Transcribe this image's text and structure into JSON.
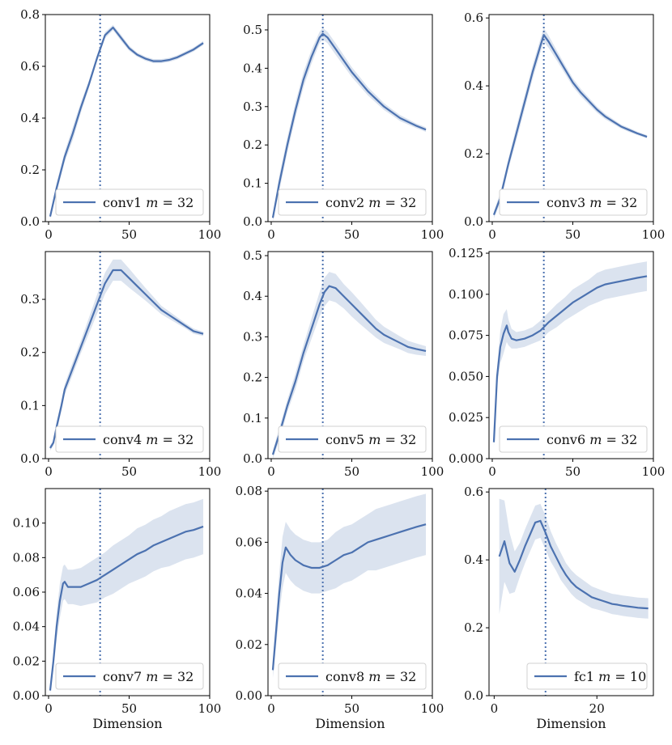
{
  "chart_data": [
    {
      "type": "line",
      "title": "",
      "legend": "conv1 m = 32",
      "legend_name": "conv1",
      "legend_var": "m",
      "legend_val": "32",
      "vline_x": 32,
      "xlim": [
        -2,
        100
      ],
      "ylim": [
        0,
        0.8
      ],
      "xticks": [
        0,
        50,
        100
      ],
      "yticks": [
        "0.0",
        "0.2",
        "0.4",
        "0.6",
        "0.8"
      ],
      "xlabel": "",
      "x": [
        1,
        5,
        10,
        15,
        20,
        25,
        30,
        35,
        40,
        45,
        50,
        55,
        60,
        65,
        70,
        75,
        80,
        85,
        90,
        96
      ],
      "y": [
        0.02,
        0.13,
        0.25,
        0.34,
        0.44,
        0.53,
        0.63,
        0.72,
        0.75,
        0.71,
        0.67,
        0.645,
        0.63,
        0.62,
        0.62,
        0.625,
        0.635,
        0.65,
        0.665,
        0.69
      ],
      "band": [
        0.01,
        0.02,
        0.02,
        0.025,
        0.02,
        0.015,
        0.012,
        0.012,
        0.01,
        0.012,
        0.01,
        0.008,
        0.008,
        0.008,
        0.008,
        0.008,
        0.008,
        0.008,
        0.008,
        0.008
      ]
    },
    {
      "type": "line",
      "title": "",
      "legend": "conv2 m = 32",
      "legend_name": "conv2",
      "legend_var": "m",
      "legend_val": "32",
      "vline_x": 32,
      "xlim": [
        -2,
        100
      ],
      "ylim": [
        0,
        0.54
      ],
      "xticks": [
        0,
        50,
        100
      ],
      "yticks": [
        "0.0",
        "0.1",
        "0.2",
        "0.3",
        "0.4",
        "0.5"
      ],
      "xlabel": "",
      "x": [
        1,
        5,
        10,
        15,
        20,
        25,
        30,
        32,
        35,
        40,
        45,
        50,
        55,
        60,
        65,
        70,
        75,
        80,
        85,
        90,
        96
      ],
      "y": [
        0.01,
        0.1,
        0.2,
        0.29,
        0.37,
        0.43,
        0.48,
        0.49,
        0.48,
        0.45,
        0.42,
        0.39,
        0.365,
        0.34,
        0.32,
        0.3,
        0.285,
        0.27,
        0.26,
        0.25,
        0.24
      ],
      "band": [
        0.01,
        0.02,
        0.02,
        0.02,
        0.02,
        0.018,
        0.015,
        0.015,
        0.015,
        0.015,
        0.014,
        0.013,
        0.012,
        0.011,
        0.01,
        0.009,
        0.008,
        0.008,
        0.007,
        0.006,
        0.006
      ]
    },
    {
      "type": "line",
      "title": "",
      "legend": "conv3 m = 32",
      "legend_name": "conv3",
      "legend_var": "m",
      "legend_val": "32",
      "vline_x": 32,
      "xlim": [
        -2,
        100
      ],
      "ylim": [
        0,
        0.61
      ],
      "xticks": [
        0,
        50,
        100
      ],
      "yticks": [
        "0.0",
        "0.2",
        "0.4",
        "0.6"
      ],
      "xlabel": "",
      "x": [
        1,
        5,
        10,
        15,
        20,
        25,
        30,
        32,
        35,
        40,
        45,
        50,
        55,
        60,
        65,
        70,
        75,
        80,
        85,
        90,
        96
      ],
      "y": [
        0.02,
        0.07,
        0.17,
        0.26,
        0.35,
        0.44,
        0.52,
        0.55,
        0.53,
        0.49,
        0.45,
        0.41,
        0.38,
        0.355,
        0.33,
        0.31,
        0.295,
        0.28,
        0.27,
        0.26,
        0.25
      ],
      "band": [
        0.01,
        0.015,
        0.015,
        0.02,
        0.02,
        0.02,
        0.02,
        0.02,
        0.018,
        0.015,
        0.013,
        0.012,
        0.011,
        0.01,
        0.009,
        0.008,
        0.007,
        0.006,
        0.006,
        0.005,
        0.005
      ]
    },
    {
      "type": "line",
      "title": "",
      "legend": "conv4 m = 32",
      "legend_name": "conv4",
      "legend_var": "m",
      "legend_val": "32",
      "vline_x": 32,
      "xlim": [
        -2,
        100
      ],
      "ylim": [
        0,
        0.39
      ],
      "xticks": [
        0,
        50,
        100
      ],
      "yticks": [
        "0.0",
        "0.1",
        "0.2",
        "0.3"
      ],
      "xlabel": "",
      "x": [
        1,
        3,
        5,
        8,
        10,
        15,
        20,
        25,
        30,
        35,
        40,
        45,
        50,
        55,
        60,
        65,
        70,
        75,
        80,
        85,
        90,
        96
      ],
      "y": [
        0.02,
        0.03,
        0.06,
        0.1,
        0.13,
        0.17,
        0.21,
        0.25,
        0.29,
        0.33,
        0.355,
        0.355,
        0.34,
        0.325,
        0.31,
        0.295,
        0.28,
        0.27,
        0.26,
        0.25,
        0.24,
        0.235
      ],
      "band": [
        0.005,
        0.005,
        0.01,
        0.01,
        0.01,
        0.012,
        0.012,
        0.015,
        0.018,
        0.02,
        0.02,
        0.02,
        0.018,
        0.015,
        0.012,
        0.01,
        0.008,
        0.007,
        0.006,
        0.005,
        0.005,
        0.004
      ]
    },
    {
      "type": "line",
      "title": "",
      "legend": "conv5 m = 32",
      "legend_name": "conv5",
      "legend_var": "m",
      "legend_val": "32",
      "vline_x": 32,
      "xlim": [
        -2,
        100
      ],
      "ylim": [
        0,
        0.51
      ],
      "xticks": [
        0,
        50,
        100
      ],
      "yticks": [
        "0.0",
        "0.1",
        "0.2",
        "0.3",
        "0.4",
        "0.5"
      ],
      "xlabel": "",
      "x": [
        1,
        5,
        10,
        15,
        20,
        25,
        30,
        33,
        36,
        40,
        45,
        50,
        55,
        60,
        65,
        70,
        75,
        80,
        85,
        90,
        96
      ],
      "y": [
        0.01,
        0.06,
        0.13,
        0.19,
        0.26,
        0.32,
        0.38,
        0.41,
        0.425,
        0.42,
        0.4,
        0.38,
        0.36,
        0.34,
        0.32,
        0.305,
        0.295,
        0.285,
        0.275,
        0.27,
        0.265
      ],
      "band": [
        0.01,
        0.015,
        0.015,
        0.02,
        0.02,
        0.025,
        0.03,
        0.035,
        0.035,
        0.035,
        0.03,
        0.03,
        0.028,
        0.025,
        0.022,
        0.02,
        0.018,
        0.016,
        0.015,
        0.014,
        0.012
      ]
    },
    {
      "type": "line",
      "title": "",
      "legend": "conv6 m = 32",
      "legend_name": "conv6",
      "legend_var": "m",
      "legend_val": "32",
      "vline_x": 32,
      "xlim": [
        -2,
        100
      ],
      "ylim": [
        0,
        0.126
      ],
      "xticks": [
        0,
        50,
        100
      ],
      "yticks": [
        "0.000",
        "0.025",
        "0.050",
        "0.075",
        "0.100",
        "0.125"
      ],
      "xlabel": "",
      "x": [
        1,
        3,
        5,
        7,
        9,
        10,
        12,
        15,
        20,
        25,
        30,
        35,
        40,
        45,
        50,
        55,
        60,
        65,
        70,
        75,
        80,
        85,
        90,
        96
      ],
      "y": [
        0.01,
        0.05,
        0.068,
        0.076,
        0.081,
        0.077,
        0.073,
        0.072,
        0.073,
        0.075,
        0.078,
        0.083,
        0.087,
        0.091,
        0.095,
        0.098,
        0.101,
        0.104,
        0.106,
        0.107,
        0.108,
        0.109,
        0.11,
        0.111
      ],
      "band": [
        0.003,
        0.006,
        0.01,
        0.012,
        0.01,
        0.008,
        0.006,
        0.005,
        0.005,
        0.005,
        0.006,
        0.006,
        0.007,
        0.007,
        0.008,
        0.008,
        0.008,
        0.009,
        0.009,
        0.009,
        0.009,
        0.009,
        0.009,
        0.009
      ]
    },
    {
      "type": "line",
      "title": "",
      "legend": "conv7 m = 32",
      "legend_name": "conv7",
      "legend_var": "m",
      "legend_val": "32",
      "vline_x": 32,
      "xlim": [
        -2,
        100
      ],
      "ylim": [
        0,
        0.12
      ],
      "xticks": [
        0,
        50,
        100
      ],
      "yticks": [
        "0.00",
        "0.02",
        "0.04",
        "0.06",
        "0.08",
        "0.10"
      ],
      "xlabel": "Dimension",
      "x": [
        1,
        3,
        5,
        7,
        9,
        10,
        12,
        15,
        20,
        25,
        30,
        35,
        40,
        45,
        50,
        55,
        60,
        65,
        70,
        75,
        80,
        85,
        90,
        96
      ],
      "y": [
        0.003,
        0.02,
        0.04,
        0.055,
        0.065,
        0.066,
        0.063,
        0.063,
        0.063,
        0.065,
        0.067,
        0.07,
        0.073,
        0.076,
        0.079,
        0.082,
        0.084,
        0.087,
        0.089,
        0.091,
        0.093,
        0.095,
        0.096,
        0.098
      ],
      "band": [
        0.002,
        0.005,
        0.008,
        0.01,
        0.01,
        0.01,
        0.01,
        0.01,
        0.011,
        0.012,
        0.013,
        0.013,
        0.014,
        0.014,
        0.014,
        0.015,
        0.015,
        0.015,
        0.015,
        0.016,
        0.016,
        0.016,
        0.016,
        0.016
      ]
    },
    {
      "type": "line",
      "title": "",
      "legend": "conv8 m = 32",
      "legend_name": "conv8",
      "legend_var": "m",
      "legend_val": "32",
      "vline_x": 32,
      "xlim": [
        -2,
        100
      ],
      "ylim": [
        0,
        0.081
      ],
      "xticks": [
        0,
        50,
        100
      ],
      "yticks": [
        "0.00",
        "0.02",
        "0.04",
        "0.06",
        "0.08"
      ],
      "xlabel": "Dimension",
      "x": [
        1,
        3,
        5,
        7,
        9,
        10,
        12,
        15,
        20,
        25,
        30,
        35,
        40,
        45,
        50,
        55,
        60,
        65,
        70,
        75,
        80,
        85,
        90,
        96
      ],
      "y": [
        0.01,
        0.025,
        0.04,
        0.052,
        0.058,
        0.057,
        0.055,
        0.053,
        0.051,
        0.05,
        0.05,
        0.051,
        0.053,
        0.055,
        0.056,
        0.058,
        0.06,
        0.061,
        0.062,
        0.063,
        0.064,
        0.065,
        0.066,
        0.067
      ],
      "band": [
        0.003,
        0.006,
        0.008,
        0.01,
        0.01,
        0.01,
        0.01,
        0.01,
        0.01,
        0.01,
        0.01,
        0.01,
        0.011,
        0.011,
        0.011,
        0.011,
        0.011,
        0.012,
        0.012,
        0.012,
        0.012,
        0.012,
        0.012,
        0.012
      ]
    },
    {
      "type": "line",
      "title": "",
      "legend": "fc1 m = 10",
      "legend_name": "fc1",
      "legend_var": "m",
      "legend_val": "10",
      "vline_x": 10,
      "xlim": [
        -1,
        31
      ],
      "ylim": [
        0,
        0.61
      ],
      "xticks": [
        0,
        20
      ],
      "yticks": [
        "0.0",
        "0.2",
        "0.4",
        "0.6"
      ],
      "xlabel": "Dimension",
      "x": [
        1,
        2,
        3,
        4,
        5,
        6,
        7,
        8,
        9,
        10,
        11,
        12,
        13,
        14,
        15,
        16,
        17,
        18,
        19,
        20,
        21,
        22,
        23,
        24,
        25,
        26,
        27,
        28,
        29,
        30
      ],
      "y": [
        0.41,
        0.455,
        0.39,
        0.365,
        0.4,
        0.44,
        0.475,
        0.51,
        0.515,
        0.48,
        0.44,
        0.41,
        0.38,
        0.355,
        0.335,
        0.32,
        0.31,
        0.3,
        0.29,
        0.285,
        0.28,
        0.275,
        0.27,
        0.268,
        0.265,
        0.263,
        0.261,
        0.259,
        0.258,
        0.257
      ],
      "band": [
        0.17,
        0.12,
        0.09,
        0.06,
        0.05,
        0.05,
        0.05,
        0.05,
        0.05,
        0.05,
        0.045,
        0.04,
        0.04,
        0.035,
        0.035,
        0.035,
        0.034,
        0.033,
        0.032,
        0.031,
        0.03,
        0.03,
        0.03,
        0.03,
        0.03,
        0.03,
        0.03,
        0.03,
        0.03,
        0.03
      ]
    }
  ]
}
